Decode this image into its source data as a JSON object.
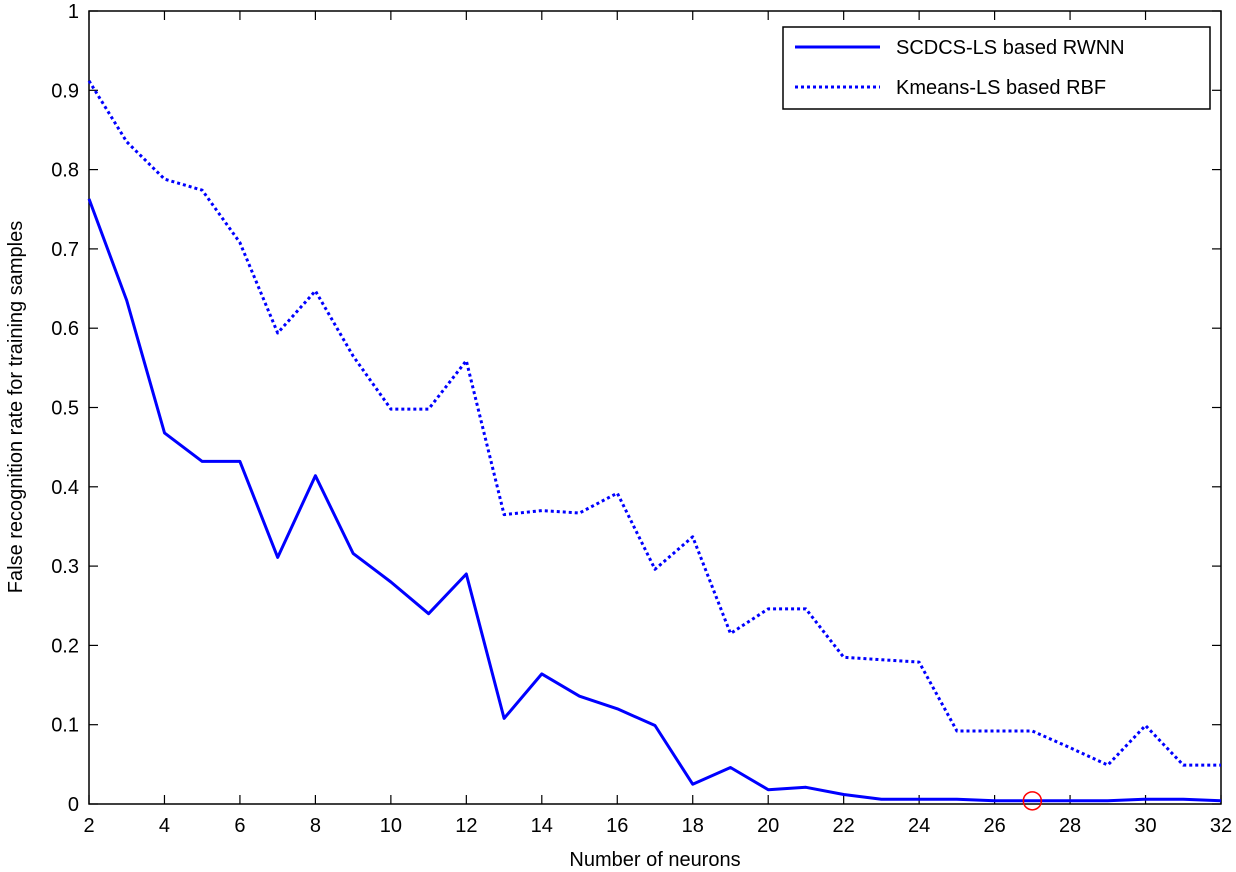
{
  "chart_data": {
    "type": "line",
    "title": "",
    "xlabel": "Number of neurons",
    "ylabel": "False recognition rate for training samples",
    "xlim": [
      2,
      32
    ],
    "ylim": [
      0,
      1
    ],
    "xticks": [
      2,
      4,
      6,
      8,
      10,
      12,
      14,
      16,
      18,
      20,
      22,
      24,
      26,
      28,
      30,
      32
    ],
    "yticks": [
      0,
      0.1,
      0.2,
      0.3,
      0.4,
      0.5,
      0.6,
      0.7,
      0.8,
      0.9,
      1
    ],
    "ytick_labels": [
      "0",
      "0.1",
      "0.2",
      "0.3",
      "0.4",
      "0.5",
      "0.6",
      "0.7",
      "0.8",
      "0.9",
      "1"
    ],
    "grid": false,
    "legend_position": "top-right",
    "colors": {
      "series": "#0000ff",
      "marker": "#ff0000"
    },
    "x": [
      2,
      3,
      4,
      5,
      6,
      7,
      8,
      9,
      10,
      11,
      12,
      13,
      14,
      15,
      16,
      17,
      18,
      19,
      20,
      21,
      22,
      23,
      24,
      25,
      26,
      27,
      28,
      29,
      30,
      31,
      32
    ],
    "series": [
      {
        "name": "SCDCS-LS based RWNN",
        "style": "solid",
        "values": [
          0.763,
          0.635,
          0.468,
          0.432,
          0.432,
          0.311,
          0.414,
          0.316,
          0.28,
          0.24,
          0.29,
          0.108,
          0.164,
          0.136,
          0.12,
          0.099,
          0.025,
          0.046,
          0.018,
          0.021,
          0.012,
          0.006,
          0.006,
          0.006,
          0.004,
          0.004,
          0.004,
          0.004,
          0.006,
          0.006,
          0.004
        ]
      },
      {
        "name": "Kmeans-LS based RBF",
        "style": "dotted",
        "values": [
          0.912,
          0.835,
          0.788,
          0.774,
          0.708,
          0.594,
          0.647,
          0.565,
          0.498,
          0.498,
          0.559,
          0.365,
          0.37,
          0.367,
          0.392,
          0.296,
          0.337,
          0.215,
          0.246,
          0.246,
          0.185,
          0.182,
          0.179,
          0.092,
          0.092,
          0.092,
          0.071,
          0.049,
          0.099,
          0.049,
          0.049
        ]
      }
    ],
    "annotations": [
      {
        "type": "circle-marker",
        "x": 27,
        "y": 0.004
      }
    ]
  }
}
